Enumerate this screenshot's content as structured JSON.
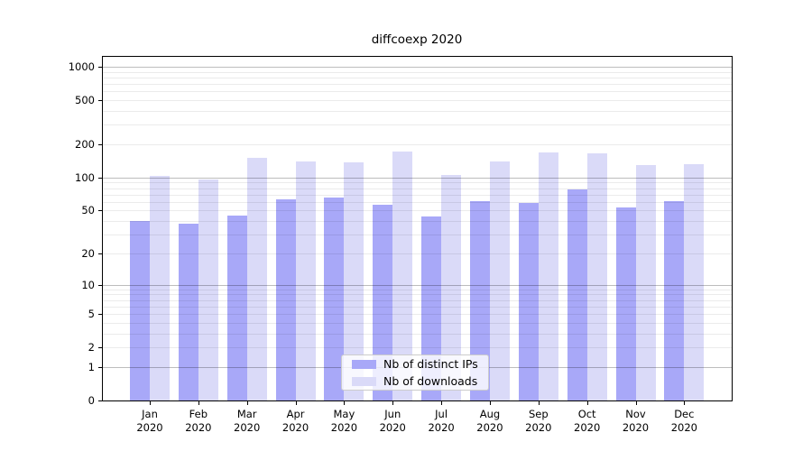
{
  "chart_data": {
    "type": "bar",
    "title": "diffcoexp 2020",
    "categories": [
      "Jan",
      "Feb",
      "Mar",
      "Apr",
      "May",
      "Jun",
      "Jul",
      "Aug",
      "Sep",
      "Oct",
      "Nov",
      "Dec"
    ],
    "year": "2020",
    "series": [
      {
        "name": "Nb of distinct IPs",
        "color": "#a8a8f8",
        "values": [
          40,
          38,
          45,
          63,
          66,
          57,
          44,
          61,
          59,
          78,
          53,
          61
        ]
      },
      {
        "name": "Nb of downloads",
        "color": "#dadaf8",
        "values": [
          103,
          97,
          152,
          139,
          137,
          171,
          106,
          141,
          169,
          167,
          131,
          133
        ]
      }
    ],
    "yscale": "log1p",
    "yticks": [
      0,
      1,
      2,
      5,
      10,
      20,
      50,
      100,
      200,
      500,
      1000
    ],
    "ylim": [
      0,
      1265
    ],
    "xlabel": "",
    "ylabel": "",
    "grid": "both",
    "legend_position": "lower-center",
    "colors": {
      "background": "#ffffff",
      "spine": "#000000",
      "grid_major": "rgba(0,0,0,0.26)",
      "grid_minor": "rgba(0,0,0,0.08)"
    }
  }
}
